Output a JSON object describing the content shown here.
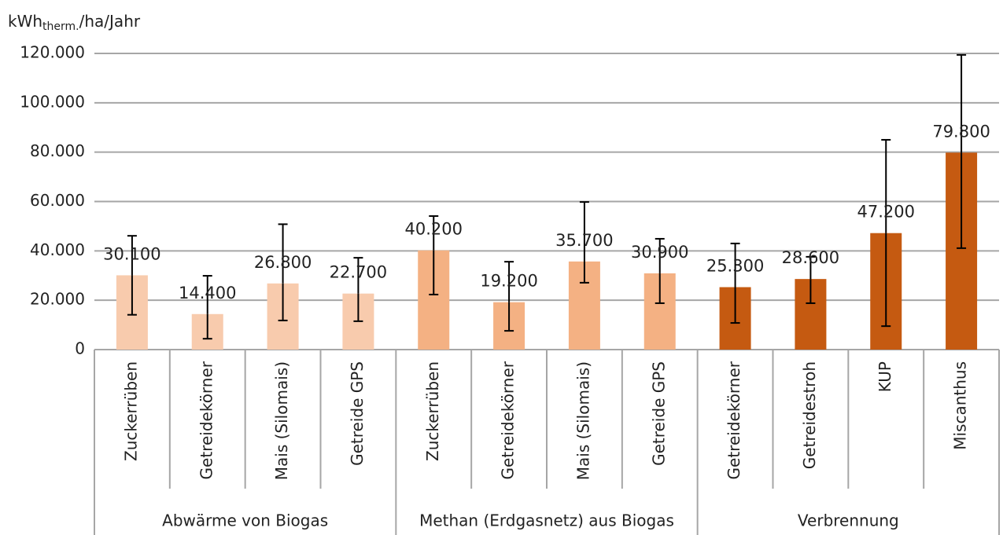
{
  "chart_data": {
    "type": "bar",
    "ylabel": "kWh",
    "ylabel_sub": "therm.",
    "ylabel_suffix": "/ha/Jahr",
    "ylim": [
      0,
      120000
    ],
    "yticks": [
      0,
      {
        "value": 20000,
        "label": "20.000"
      },
      {
        "value": 40000,
        "label": "40.000"
      },
      {
        "value": 60000,
        "label": "60.000"
      },
      {
        "value": 80000,
        "label": "80.000"
      },
      {
        "value": 100000,
        "label": "100.000"
      },
      {
        "value": 120000,
        "label": "120.000"
      }
    ],
    "grid": true,
    "groups": [
      {
        "name": "Abwärme von Biogas",
        "color": "#f8cbad",
        "categories": [
          "Zuckerrüben",
          "Getreidekörner",
          "Mais (Silomais)",
          "Getreide GPS"
        ],
        "values": [
          30100,
          14400,
          26800,
          22700
        ],
        "value_labels": [
          "30.100",
          "14.400",
          "26.800",
          "22.700"
        ],
        "err_minus": [
          16000,
          10000,
          15000,
          11200
        ],
        "err_plus": [
          16000,
          15500,
          24000,
          14500
        ]
      },
      {
        "name": "Methan (Erdgasnetz) aus Biogas",
        "color": "#f4b183",
        "categories": [
          "Zuckerrüben",
          "Getreidekörner",
          "Mais (Silomais)",
          "Getreide GPS"
        ],
        "values": [
          40200,
          19200,
          35700,
          30900
        ],
        "value_labels": [
          "40.200",
          "19.200",
          "35.700",
          "30.900"
        ],
        "err_minus": [
          17900,
          11600,
          8600,
          12100
        ],
        "err_plus": [
          13900,
          16400,
          24100,
          14000
        ]
      },
      {
        "name": "Verbrennung",
        "color": "#c55a11",
        "categories": [
          "Getreidekörner",
          "Getreidestroh",
          "KUP",
          "Miscanthus"
        ],
        "values": [
          25300,
          28600,
          47200,
          79800
        ],
        "value_labels": [
          "25.300",
          "28.600",
          "47.200",
          "79.800"
        ],
        "err_minus": [
          14500,
          9800,
          37700,
          38700
        ],
        "err_plus": [
          17700,
          9000,
          37800,
          39600
        ]
      }
    ]
  }
}
